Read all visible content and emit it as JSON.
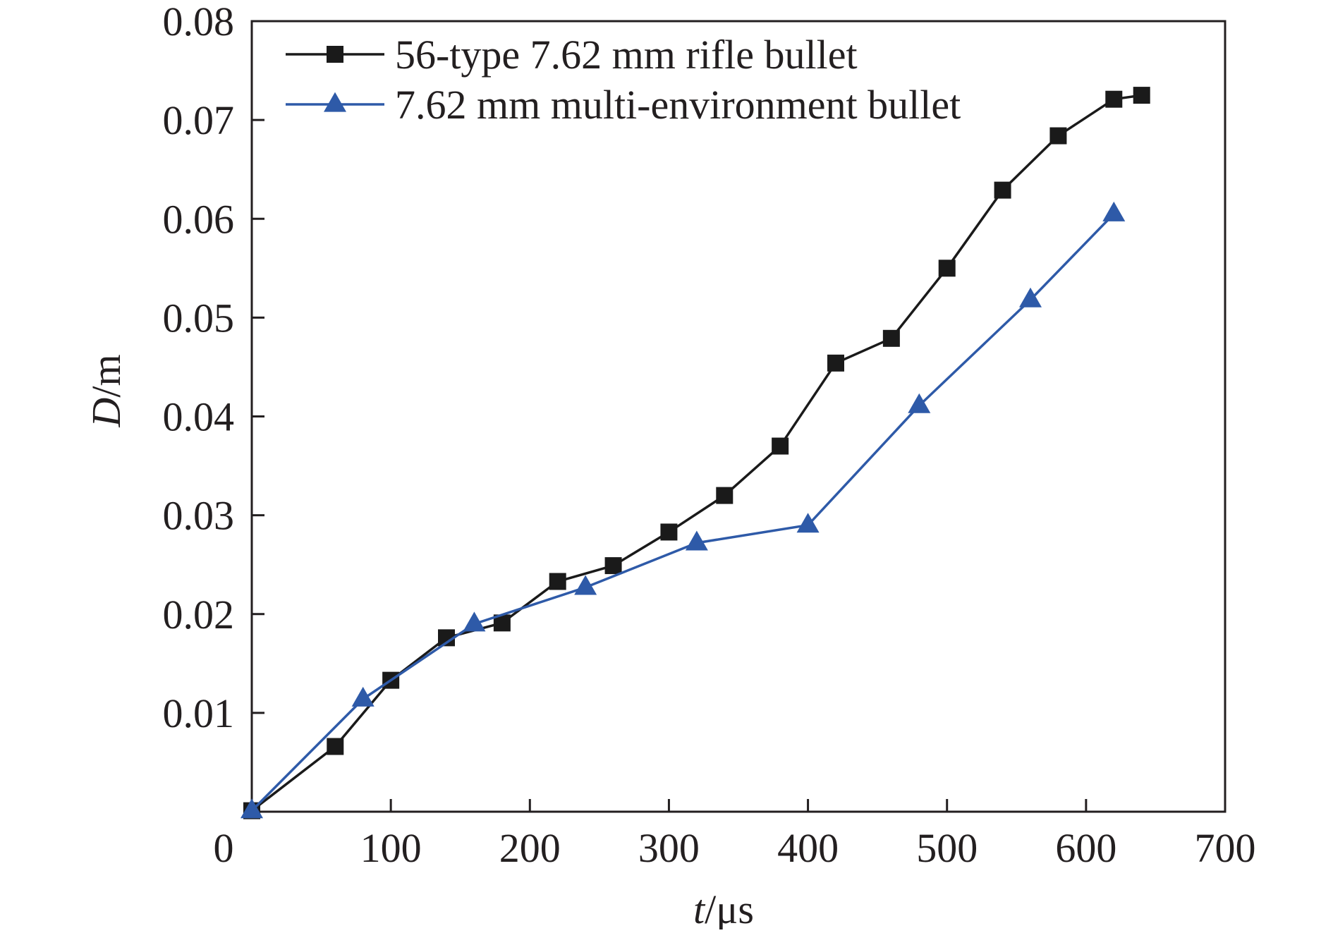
{
  "chart_data": {
    "type": "line",
    "title": "",
    "xlabel": {
      "symbol": "t",
      "unit": "/μs"
    },
    "ylabel": {
      "symbol": "D",
      "unit": "/m"
    },
    "xlim": [
      0,
      700
    ],
    "ylim": [
      0,
      0.08
    ],
    "x_ticks": [
      0,
      100,
      200,
      300,
      400,
      500,
      600,
      700
    ],
    "x_tick_labels": [
      "0",
      "100",
      "200",
      "300",
      "400",
      "500",
      "600",
      "700"
    ],
    "y_ticks": [
      0.01,
      0.02,
      0.03,
      0.04,
      0.05,
      0.06,
      0.07,
      0.08
    ],
    "y_tick_labels": [
      "0.01",
      "0.02",
      "0.03",
      "0.04",
      "0.05",
      "0.06",
      "0.07",
      "0.08"
    ],
    "grid": false,
    "legend_position": "top-left",
    "series": [
      {
        "name": "56-type 7.62 mm rifle bullet",
        "color": "#1a1a1a",
        "marker": "square",
        "x": [
          0,
          60,
          100,
          140,
          180,
          220,
          260,
          300,
          340,
          380,
          420,
          460,
          500,
          540,
          580,
          620,
          640
        ],
        "y": [
          0.0001,
          0.0066,
          0.0133,
          0.0176,
          0.0191,
          0.0233,
          0.0249,
          0.0283,
          0.032,
          0.037,
          0.0454,
          0.0479,
          0.055,
          0.0629,
          0.0684,
          0.0721,
          0.0725
        ]
      },
      {
        "name": "7.62 mm multi-environment bullet",
        "color": "#2e5aa8",
        "marker": "triangle",
        "x": [
          0,
          80,
          160,
          240,
          320,
          400,
          480,
          560,
          620
        ],
        "y": [
          0.0001,
          0.0114,
          0.019,
          0.0227,
          0.0272,
          0.029,
          0.0411,
          0.0518,
          0.0605
        ]
      }
    ]
  }
}
